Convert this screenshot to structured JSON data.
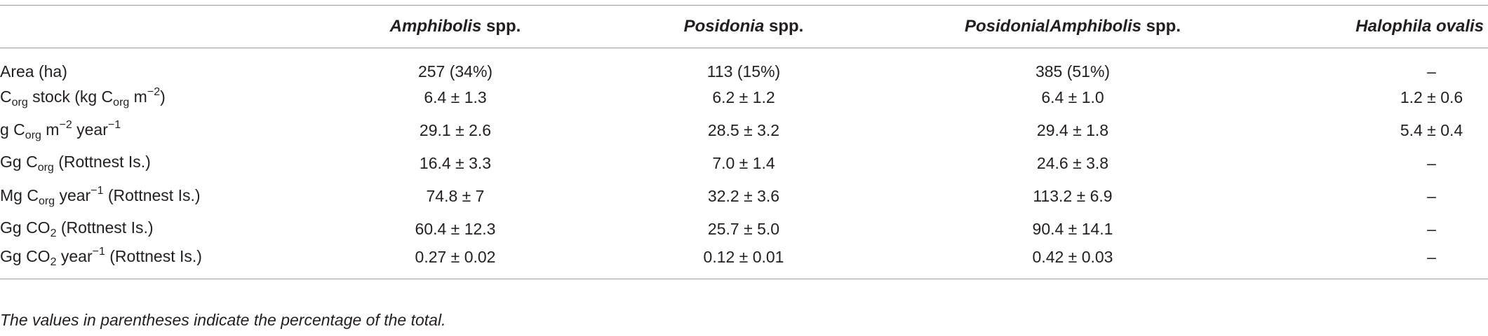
{
  "table": {
    "columns": [
      [
        "Amphibolis",
        " spp."
      ],
      [
        "Posidonia",
        " spp."
      ],
      [
        "Posidonia",
        "/",
        "Amphibolis",
        " spp."
      ],
      [
        "Halophila ovalis"
      ]
    ],
    "rows": [
      {
        "label": [
          "Area (ha)"
        ],
        "cells": [
          "257 (34%)",
          "113 (15%)",
          "385 (51%)",
          "–"
        ]
      },
      {
        "label": [
          "C",
          "org",
          " stock (kg C",
          "org",
          " m",
          "−2",
          ")"
        ],
        "cells": [
          "6.4 ± 1.3",
          "6.2 ± 1.2",
          "6.4 ± 1.0",
          "1.2 ± 0.6"
        ]
      },
      {
        "label": [
          "g C",
          "org",
          " m",
          "−2",
          " year",
          "−1"
        ],
        "cells": [
          "29.1 ± 2.6",
          "28.5 ± 3.2",
          "29.4 ± 1.8",
          "5.4 ± 0.4"
        ]
      },
      {
        "label": [
          "Gg C",
          "org",
          " (Rottnest Is.)"
        ],
        "cells": [
          "16.4 ± 3.3",
          "7.0 ± 1.4",
          "24.6 ± 3.8",
          "–"
        ]
      },
      {
        "label": [
          "Mg C",
          "org",
          " year",
          "−1",
          " (Rottnest Is.)"
        ],
        "cells": [
          "74.8 ± 7",
          "32.2 ± 3.6",
          "113.2 ± 6.9",
          "–"
        ]
      },
      {
        "label": [
          "Gg CO",
          "2",
          " (Rottnest Is.)"
        ],
        "cells": [
          "60.4 ± 12.3",
          "25.7 ± 5.0",
          "90.4 ± 14.1",
          "–"
        ]
      },
      {
        "label": [
          "Gg CO",
          "2",
          " year",
          "−1",
          " (Rottnest Is.)"
        ],
        "cells": [
          "0.27 ± 0.02",
          "0.12 ± 0.01",
          "0.42 ± 0.03",
          "–"
        ]
      }
    ],
    "footnote": "The values in parentheses indicate the percentage of the total."
  }
}
